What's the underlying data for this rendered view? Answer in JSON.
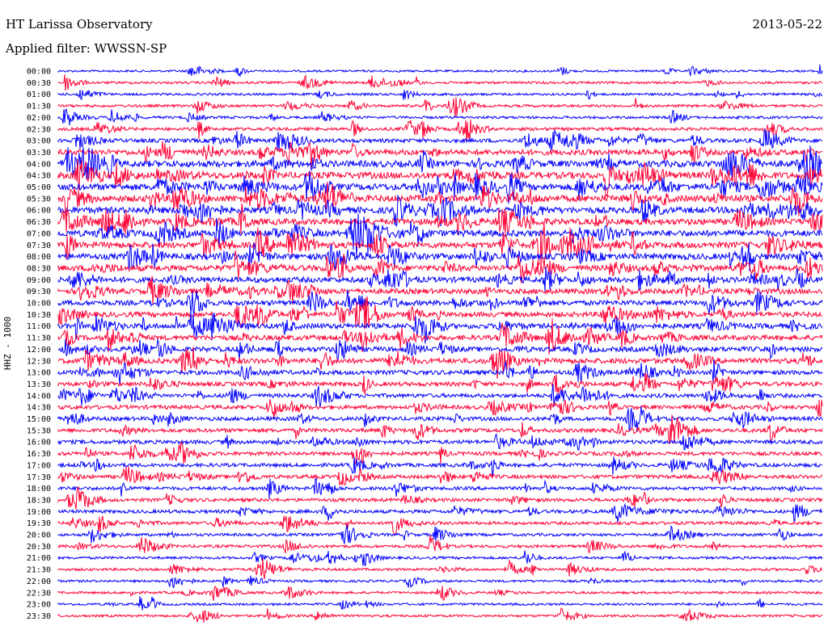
{
  "header": {
    "station": "HT Larissa Observatory",
    "filter": "Applied filter: WWSSN-SP",
    "date": "2013-05-22"
  },
  "chart_data": {
    "type": "line",
    "title": "HT Larissa Observatory",
    "subtitle": "Applied filter: WWSSN-SP",
    "date": "2013-05-22",
    "ylabel": "HHZ - 1000",
    "trace_colors": [
      "#0000ff",
      "#ff0033"
    ],
    "rows": [
      "00:00",
      "00:30",
      "01:00",
      "01:30",
      "02:00",
      "02:30",
      "03:00",
      "03:30",
      "04:00",
      "04:30",
      "05:00",
      "05:30",
      "06:00",
      "06:30",
      "07:00",
      "07:30",
      "08:00",
      "08:30",
      "09:00",
      "09:30",
      "10:00",
      "10:30",
      "11:00",
      "11:30",
      "12:00",
      "12:30",
      "13:00",
      "13:30",
      "14:00",
      "14:30",
      "15:00",
      "15:30",
      "16:00",
      "16:30",
      "17:00",
      "17:30",
      "18:00",
      "18:30",
      "19:00",
      "19:30",
      "20:00",
      "20:30",
      "21:00",
      "21:30",
      "22:00",
      "22:30",
      "23:00",
      "23:30"
    ],
    "activity": [
      0.15,
      0.2,
      0.2,
      0.25,
      0.25,
      0.35,
      0.5,
      0.8,
      1.0,
      1.0,
      1.0,
      1.0,
      0.95,
      0.9,
      0.95,
      0.9,
      0.9,
      0.85,
      0.8,
      0.75,
      0.7,
      0.7,
      0.75,
      0.7,
      0.7,
      0.75,
      0.6,
      0.55,
      0.5,
      0.5,
      0.5,
      0.5,
      0.5,
      0.45,
      0.45,
      0.45,
      0.4,
      0.4,
      0.4,
      0.35,
      0.3,
      0.3,
      0.25,
      0.25,
      0.2,
      0.2,
      0.2,
      0.2
    ],
    "grid": false
  }
}
